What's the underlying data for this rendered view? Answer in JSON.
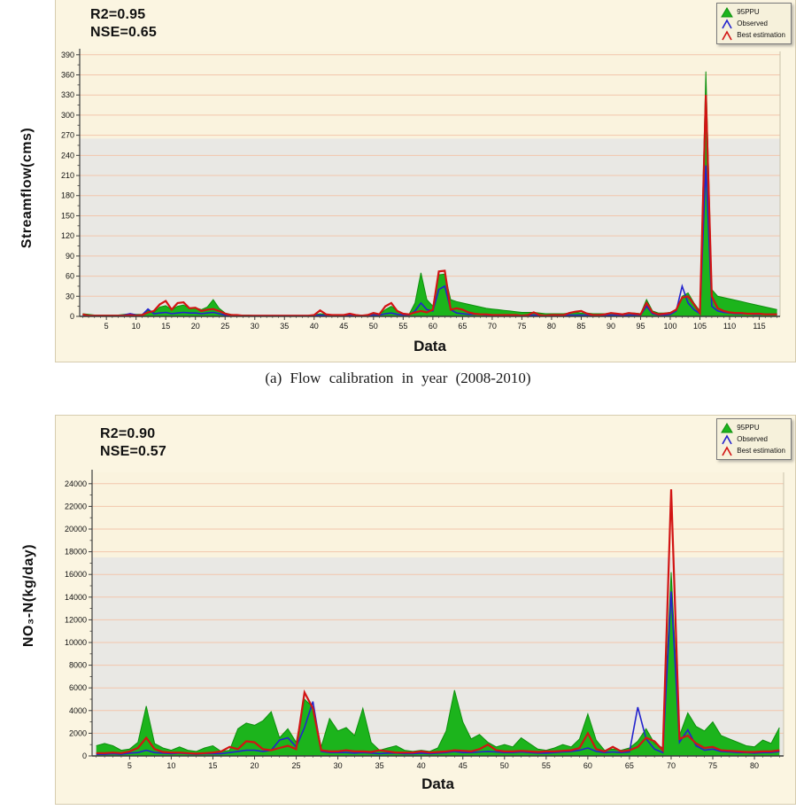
{
  "caption": "(a) Flow calibration in year (2008-2010)",
  "palette": {
    "panel_bg": "#FBF5E1",
    "plot_bg_upper": "#FAF3DE",
    "plot_bg_lower": "#E9E8E4",
    "gridline": "#F2C6AC",
    "axis": "#3d3d3d",
    "ppu_green": "#1CB41C",
    "ppu_green_edge": "#0D8F0D",
    "observed_blue": "#2323CD",
    "best_red": "#D21414"
  },
  "chart_data": [
    {
      "type": "area",
      "title": "",
      "stats_r2": "R2=0.95",
      "stats_nse": "NSE=0.65",
      "xlabel": "Data",
      "ylabel": "Streamflow(cms)",
      "ylim": [
        0,
        390
      ],
      "yticks": [
        0,
        30,
        60,
        90,
        120,
        150,
        180,
        210,
        240,
        270,
        300,
        330,
        360,
        390
      ],
      "xlim": [
        1,
        118
      ],
      "xticks": [
        5,
        10,
        15,
        20,
        25,
        30,
        35,
        40,
        45,
        50,
        55,
        60,
        65,
        70,
        75,
        80,
        85,
        90,
        95,
        100,
        105,
        110,
        115
      ],
      "gray_band_top": 265,
      "grid": true,
      "legend_position": "top-right",
      "series": [
        {
          "name": "95PPU",
          "style": "filled-triangle",
          "draw": "area",
          "color": "#1CB41C",
          "values": [
            4,
            3,
            2,
            2,
            2,
            2,
            2,
            3,
            4,
            3,
            3,
            9,
            6,
            14,
            16,
            10,
            15,
            17,
            12,
            13,
            10,
            14,
            25,
            12,
            5,
            3,
            2,
            2,
            2,
            1,
            1,
            1,
            1,
            1,
            1,
            1,
            1,
            1,
            1,
            2,
            4,
            3,
            2,
            2,
            2,
            3,
            2,
            2,
            2,
            4,
            3,
            10,
            15,
            8,
            4,
            3,
            20,
            65,
            25,
            15,
            62,
            63,
            25,
            22,
            20,
            18,
            16,
            14,
            12,
            11,
            10,
            9,
            8,
            7,
            6,
            6,
            6,
            5,
            4,
            4,
            4,
            4,
            5,
            6,
            5,
            5,
            4,
            4,
            4,
            5,
            4,
            4,
            5,
            5,
            4,
            25,
            8,
            5,
            5,
            6,
            10,
            30,
            35,
            20,
            8,
            365,
            40,
            30,
            28,
            26,
            24,
            22,
            20,
            18,
            16,
            14,
            12,
            10
          ]
        },
        {
          "name": "Observed",
          "style": "open-triangle",
          "draw": "line",
          "color": "#2323CD",
          "values": [
            2,
            1,
            1,
            1,
            1,
            1,
            1,
            2,
            4,
            2,
            2,
            11,
            4,
            5,
            6,
            4,
            5,
            6,
            5,
            5,
            4,
            5,
            6,
            4,
            2,
            1,
            1,
            1,
            1,
            1,
            1,
            1,
            1,
            1,
            1,
            1,
            1,
            1,
            1,
            1,
            2,
            1,
            1,
            1,
            1,
            2,
            1,
            1,
            1,
            2,
            2,
            4,
            5,
            3,
            2,
            2,
            8,
            20,
            10,
            8,
            40,
            45,
            10,
            5,
            4,
            3,
            3,
            3,
            2,
            2,
            2,
            2,
            1,
            1,
            1,
            1,
            2,
            1,
            1,
            1,
            1,
            1,
            2,
            2,
            2,
            2,
            1,
            1,
            1,
            2,
            2,
            1,
            2,
            2,
            2,
            15,
            4,
            2,
            2,
            3,
            8,
            45,
            20,
            10,
            4,
            225,
            15,
            8,
            6,
            5,
            4,
            4,
            4,
            3,
            3,
            3,
            3,
            3
          ]
        },
        {
          "name": "Best estimation",
          "style": "open-triangle",
          "draw": "line",
          "color": "#D21414",
          "values": [
            3,
            1,
            1,
            1,
            1,
            1,
            1,
            1,
            2,
            1,
            2,
            6,
            8,
            18,
            23,
            10,
            20,
            21,
            12,
            13,
            8,
            10,
            11,
            8,
            4,
            2,
            2,
            1,
            1,
            1,
            1,
            1,
            1,
            1,
            1,
            1,
            1,
            1,
            1,
            2,
            9,
            3,
            2,
            2,
            2,
            4,
            2,
            1,
            2,
            5,
            3,
            15,
            20,
            8,
            4,
            3,
            6,
            8,
            6,
            10,
            67,
            68,
            10,
            12,
            10,
            6,
            4,
            3,
            3,
            2,
            2,
            2,
            2,
            2,
            1,
            2,
            6,
            2,
            1,
            2,
            2,
            2,
            5,
            7,
            8,
            4,
            2,
            2,
            3,
            5,
            4,
            3,
            5,
            4,
            3,
            20,
            6,
            3,
            4,
            5,
            10,
            28,
            30,
            18,
            5,
            330,
            30,
            12,
            8,
            6,
            5,
            5,
            4,
            4,
            4,
            3,
            3,
            3
          ]
        }
      ]
    },
    {
      "type": "area",
      "title": "",
      "stats_r2": "R2=0.90",
      "stats_nse": "NSE=0.57",
      "xlabel": "Data",
      "ylabel": "NO₃-N(kg/day)",
      "ylim": [
        0,
        24000
      ],
      "yticks": [
        0,
        2000,
        4000,
        6000,
        8000,
        10000,
        12000,
        14000,
        16000,
        18000,
        20000,
        22000,
        24000
      ],
      "xlim": [
        1,
        83
      ],
      "xticks": [
        5,
        10,
        15,
        20,
        25,
        30,
        35,
        40,
        45,
        50,
        55,
        60,
        65,
        70,
        75,
        80
      ],
      "gray_band_top": 17500,
      "grid": true,
      "legend_position": "top-right",
      "series": [
        {
          "name": "95PPU",
          "style": "filled-triangle",
          "draw": "area",
          "color": "#1CB41C",
          "values": [
            900,
            1100,
            900,
            500,
            600,
            1200,
            4400,
            1100,
            700,
            500,
            800,
            500,
            400,
            700,
            900,
            400,
            500,
            2400,
            2900,
            2700,
            3100,
            3900,
            1600,
            2400,
            1200,
            5000,
            4300,
            800,
            3300,
            2200,
            2500,
            1800,
            4200,
            1200,
            500,
            700,
            900,
            500,
            400,
            500,
            400,
            700,
            2200,
            5800,
            3000,
            1500,
            1900,
            1200,
            800,
            1000,
            800,
            1600,
            1100,
            600,
            500,
            700,
            1000,
            800,
            1500,
            3700,
            1400,
            500,
            600,
            500,
            700,
            1300,
            2400,
            1100,
            700,
            16200,
            1800,
            3800,
            2600,
            2200,
            3000,
            1800,
            1500,
            1200,
            900,
            800,
            1400,
            1100,
            2500
          ]
        },
        {
          "name": "Observed",
          "style": "open-triangle",
          "draw": "line",
          "color": "#2323CD",
          "values": [
            150,
            150,
            200,
            150,
            250,
            300,
            500,
            300,
            250,
            200,
            250,
            200,
            150,
            200,
            200,
            200,
            300,
            400,
            500,
            500,
            400,
            500,
            1400,
            1600,
            800,
            2500,
            4800,
            400,
            300,
            300,
            300,
            250,
            300,
            250,
            200,
            250,
            250,
            200,
            200,
            250,
            200,
            250,
            300,
            400,
            300,
            300,
            350,
            400,
            350,
            300,
            300,
            350,
            300,
            250,
            250,
            300,
            350,
            400,
            500,
            700,
            400,
            300,
            350,
            300,
            350,
            4300,
            1500,
            600,
            300,
            14500,
            1200,
            2300,
            900,
            500,
            600,
            400,
            350,
            300,
            300,
            250,
            300,
            300,
            400
          ]
        },
        {
          "name": "Best estimation",
          "style": "open-triangle",
          "draw": "line",
          "color": "#D21414",
          "values": [
            250,
            250,
            300,
            250,
            400,
            700,
            1600,
            600,
            350,
            300,
            300,
            250,
            200,
            250,
            300,
            400,
            800,
            600,
            1300,
            1200,
            600,
            500,
            700,
            900,
            600,
            5600,
            4200,
            500,
            400,
            400,
            500,
            400,
            400,
            350,
            500,
            400,
            300,
            300,
            300,
            400,
            300,
            350,
            400,
            500,
            450,
            400,
            600,
            1000,
            500,
            400,
            400,
            450,
            400,
            350,
            400,
            400,
            450,
            500,
            700,
            2000,
            600,
            400,
            800,
            400,
            500,
            800,
            1600,
            1300,
            500,
            23500,
            1500,
            1800,
            1100,
            700,
            800,
            500,
            450,
            400,
            350,
            350,
            400,
            400,
            500
          ]
        }
      ]
    }
  ]
}
